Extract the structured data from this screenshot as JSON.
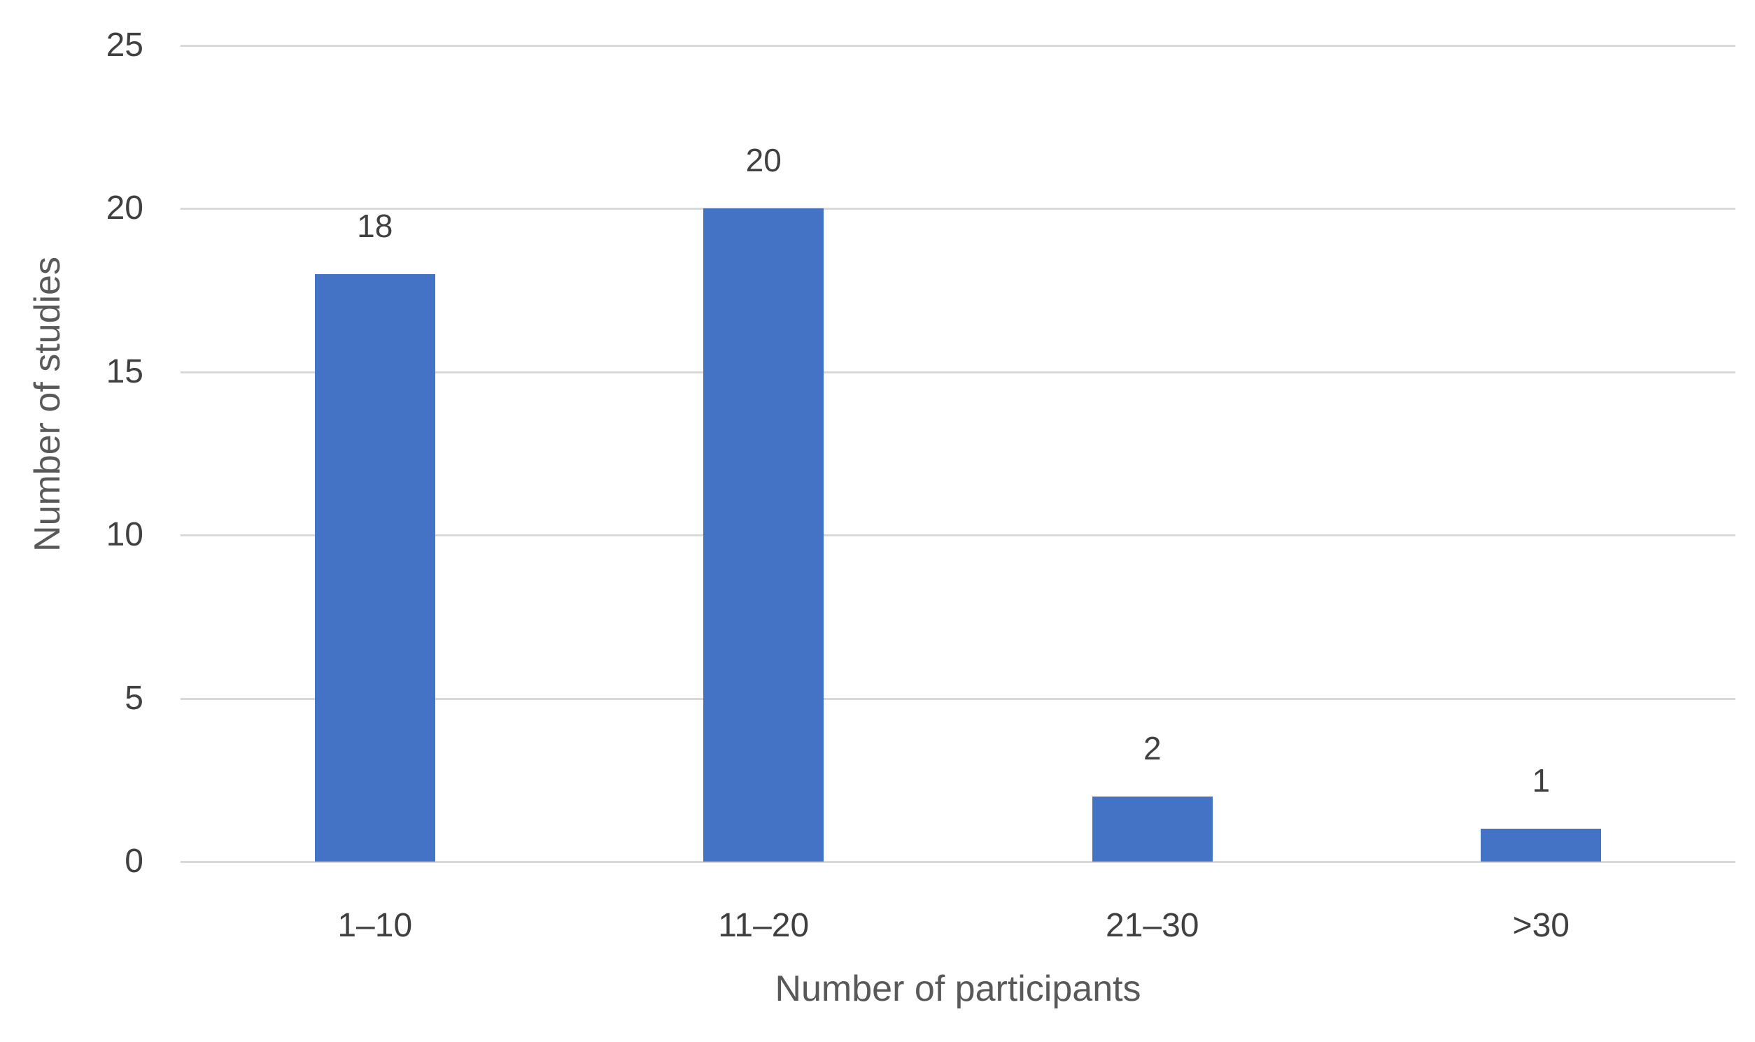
{
  "chart_data": {
    "type": "bar",
    "title": "",
    "categories": [
      "1–10",
      "11–20",
      "21–30",
      ">30"
    ],
    "values": [
      18,
      20,
      2,
      1
    ],
    "data_labels": [
      "18",
      "20",
      "2",
      "1"
    ],
    "xlabel": "Number of participants",
    "ylabel": "Number of studies",
    "ylim": [
      0,
      25
    ],
    "yticks": [
      0,
      5,
      10,
      15,
      20,
      25
    ],
    "ytick_labels": [
      "0",
      "5",
      "10",
      "15",
      "20",
      "25"
    ],
    "grid": "horizontal",
    "legend": "none",
    "colors": {
      "bar": "#4472C4",
      "gridline": "#D9D9D9",
      "tick_text": "#404040",
      "axis_title": "#595959",
      "background": "#FFFFFF"
    }
  }
}
